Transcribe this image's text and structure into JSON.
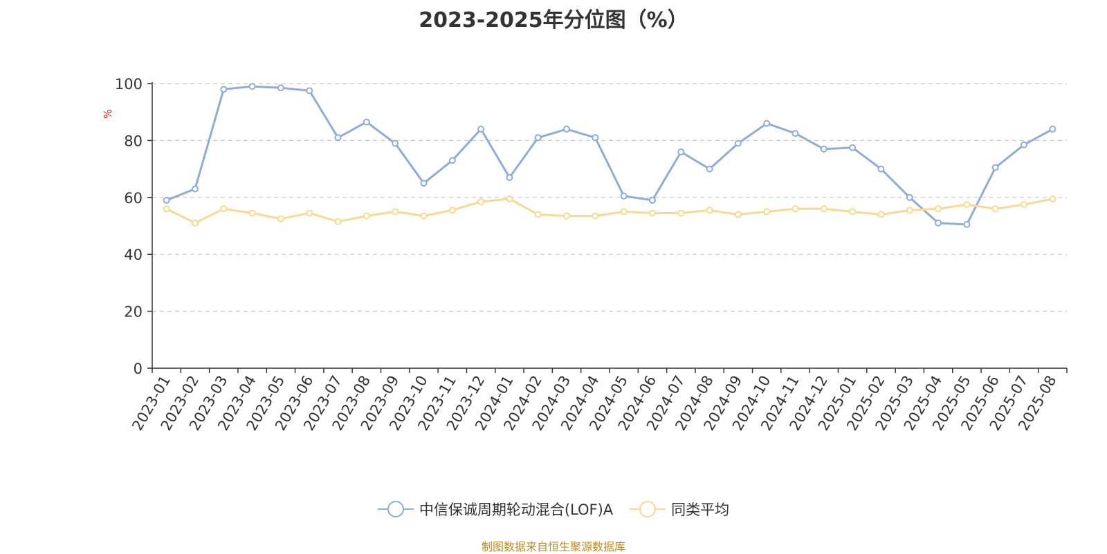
{
  "title": "2023-2025年分位图（%）",
  "source": "制图数据来自恒生聚源数据库",
  "chart_data": {
    "type": "line",
    "title": "2023-2025年分位图（%）",
    "ylabel": "%",
    "ylim": [
      0,
      100
    ],
    "yticks": [
      0,
      20,
      40,
      60,
      80,
      100
    ],
    "grid": true,
    "legend_position": "bottom",
    "categories": [
      "2023-01",
      "2023-02",
      "2023-03",
      "2023-04",
      "2023-05",
      "2023-06",
      "2023-07",
      "2023-08",
      "2023-09",
      "2023-10",
      "2023-11",
      "2023-12",
      "2024-01",
      "2024-02",
      "2024-03",
      "2024-04",
      "2024-05",
      "2024-06",
      "2024-07",
      "2024-08",
      "2024-09",
      "2024-10",
      "2024-11",
      "2024-12",
      "2025-01",
      "2025-02",
      "2025-03",
      "2025-04",
      "2025-05",
      "2025-06",
      "2025-07",
      "2025-08"
    ],
    "series": [
      {
        "name": "中信保诚周期轮动混合(LOF)A",
        "color": "#8eacd8",
        "values": [
          59,
          63,
          98,
          99,
          98.5,
          97.5,
          81,
          86.5,
          79,
          65,
          73,
          84,
          67,
          81,
          84,
          81,
          60.5,
          59,
          76,
          70,
          79,
          86,
          82.5,
          77,
          77.5,
          70,
          60,
          51,
          50.5,
          70.5,
          78.5,
          84
        ]
      },
      {
        "name": "同类平均",
        "color": "#fbd88f",
        "values": [
          56,
          51,
          56,
          54.5,
          52.5,
          54.5,
          51.5,
          53.5,
          55,
          53.5,
          55.5,
          58.5,
          59.5,
          54,
          53.5,
          53.5,
          55,
          54.5,
          54.5,
          55.5,
          54,
          55,
          56,
          56,
          55,
          54,
          55.5,
          56,
          57.5,
          56,
          57.5,
          59.5
        ]
      }
    ]
  }
}
